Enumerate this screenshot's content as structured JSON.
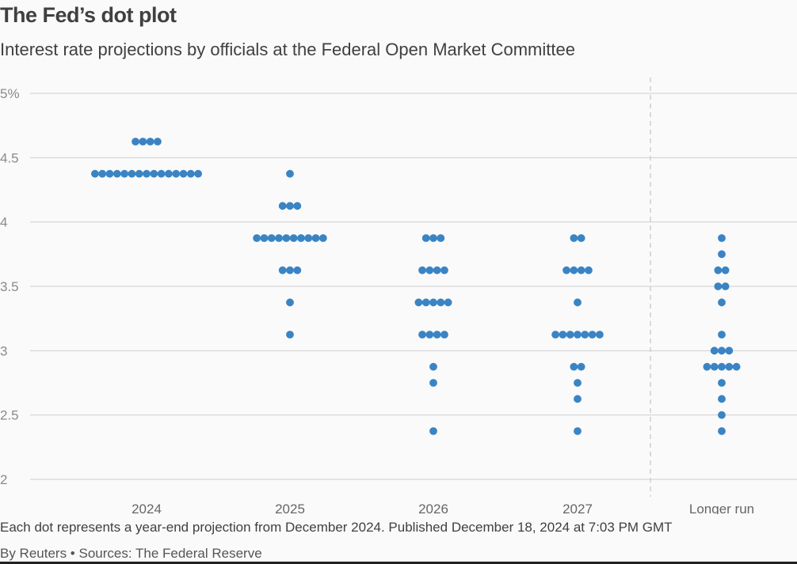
{
  "header": {
    "title": "The Fed’s dot plot",
    "subtitle": "Interest rate projections by officials at the Federal Open Market Committee"
  },
  "footer": {
    "note": "Each dot represents a year-end projection from December 2024. Published December 18, 2024 at 7:03 PM GMT",
    "source": "By Reuters • Sources: The Federal Reserve"
  },
  "colors": {
    "dot": "#3a84c4",
    "grid": "#cfcfcf",
    "divider": "#c8c8c8",
    "tick": "#666666"
  },
  "chart_data": {
    "type": "scatter",
    "categories": [
      "2024",
      "2025",
      "2026",
      "2027",
      "Longer run"
    ],
    "y_tick_labels": [
      "5%",
      "4.5",
      "4",
      "3.5",
      "3",
      "2.5",
      "2"
    ],
    "y_ticks": [
      5,
      4.5,
      4,
      3.5,
      3,
      2.5,
      2
    ],
    "ylim": [
      2,
      5
    ],
    "grid": true,
    "divider_before": "Longer run",
    "series": [
      {
        "category": "2024",
        "points": [
          {
            "y": 4.625,
            "count": 4
          },
          {
            "y": 4.375,
            "count": 15
          }
        ]
      },
      {
        "category": "2025",
        "points": [
          {
            "y": 4.375,
            "count": 1
          },
          {
            "y": 4.125,
            "count": 3
          },
          {
            "y": 3.875,
            "count": 10
          },
          {
            "y": 3.625,
            "count": 3
          },
          {
            "y": 3.375,
            "count": 1
          },
          {
            "y": 3.125,
            "count": 1
          }
        ]
      },
      {
        "category": "2026",
        "points": [
          {
            "y": 3.875,
            "count": 3
          },
          {
            "y": 3.625,
            "count": 4
          },
          {
            "y": 3.375,
            "count": 5
          },
          {
            "y": 3.125,
            "count": 4
          },
          {
            "y": 2.875,
            "count": 1
          },
          {
            "y": 2.75,
            "count": 1
          },
          {
            "y": 2.375,
            "count": 1
          }
        ]
      },
      {
        "category": "2027",
        "points": [
          {
            "y": 3.875,
            "count": 2
          },
          {
            "y": 3.625,
            "count": 4
          },
          {
            "y": 3.375,
            "count": 1
          },
          {
            "y": 3.125,
            "count": 7
          },
          {
            "y": 2.875,
            "count": 2
          },
          {
            "y": 2.75,
            "count": 1
          },
          {
            "y": 2.625,
            "count": 1
          },
          {
            "y": 2.375,
            "count": 1
          }
        ]
      },
      {
        "category": "Longer run",
        "points": [
          {
            "y": 3.875,
            "count": 1
          },
          {
            "y": 3.75,
            "count": 1
          },
          {
            "y": 3.625,
            "count": 2
          },
          {
            "y": 3.5,
            "count": 2
          },
          {
            "y": 3.375,
            "count": 1
          },
          {
            "y": 3.125,
            "count": 1
          },
          {
            "y": 3.0,
            "count": 3
          },
          {
            "y": 2.875,
            "count": 5
          },
          {
            "y": 2.75,
            "count": 1
          },
          {
            "y": 2.625,
            "count": 1
          },
          {
            "y": 2.5,
            "count": 1
          },
          {
            "y": 2.375,
            "count": 1
          }
        ]
      }
    ]
  }
}
